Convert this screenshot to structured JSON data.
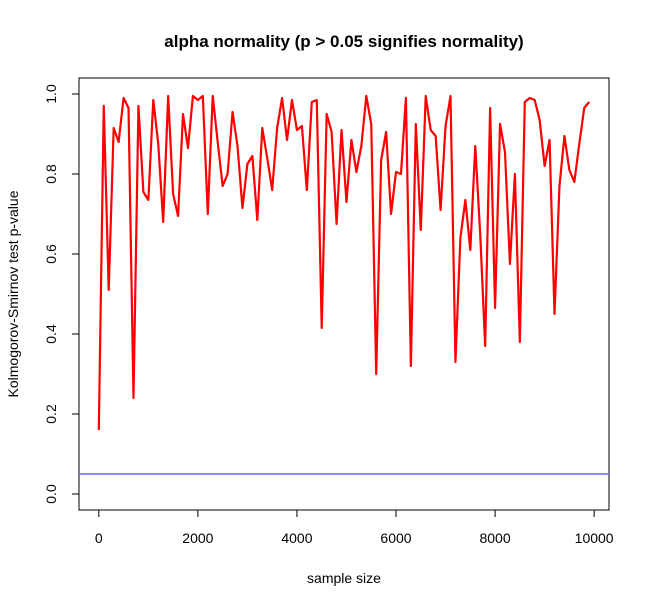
{
  "chart_data": {
    "type": "line",
    "title": "alpha normality (p > 0.05 signifies normality)",
    "xlabel": "sample size",
    "ylabel": "Kolmogorov-Smirnov test p-value",
    "xlim": [
      -400,
      10300
    ],
    "ylim": [
      -0.04,
      1.04
    ],
    "x_ticks": [
      0,
      2000,
      4000,
      6000,
      8000,
      10000
    ],
    "y_ticks": [
      0.0,
      0.2,
      0.4,
      0.6,
      0.8,
      1.0
    ],
    "x_tick_labels": [
      "0",
      "2000",
      "4000",
      "6000",
      "8000",
      "10000"
    ],
    "y_tick_labels": [
      "0.0",
      "0.2",
      "0.4",
      "0.6",
      "0.8",
      "1.0"
    ],
    "grid": false,
    "series": [
      {
        "color": "#ff0000",
        "x": [
          0,
          100,
          200,
          300,
          400,
          500,
          600,
          700,
          800,
          900,
          1000,
          1100,
          1200,
          1300,
          1400,
          1500,
          1600,
          1700,
          1800,
          1900,
          2000,
          2100,
          2200,
          2300,
          2400,
          2500,
          2600,
          2700,
          2800,
          2900,
          3000,
          3100,
          3200,
          3300,
          3400,
          3500,
          3600,
          3700,
          3800,
          3900,
          4000,
          4100,
          4200,
          4300,
          4400,
          4500,
          4600,
          4700,
          4800,
          4900,
          5000,
          5100,
          5200,
          5300,
          5400,
          5500,
          5600,
          5700,
          5800,
          5900,
          6000,
          6100,
          6200,
          6300,
          6400,
          6500,
          6600,
          6700,
          6800,
          6900,
          7000,
          7100,
          7200,
          7300,
          7400,
          7500,
          7600,
          7700,
          7800,
          7900,
          8000,
          8100,
          8200,
          8300,
          8400,
          8500,
          8600,
          8700,
          8800,
          8900,
          9000,
          9100,
          9200,
          9300,
          9400,
          9500,
          9600,
          9700,
          9800,
          9900
        ],
        "values": [
          0.16,
          0.97,
          0.51,
          0.915,
          0.88,
          0.99,
          0.965,
          0.24,
          0.97,
          0.755,
          0.735,
          0.985,
          0.875,
          0.68,
          0.995,
          0.75,
          0.695,
          0.95,
          0.865,
          0.995,
          0.985,
          0.995,
          0.7,
          0.995,
          0.88,
          0.77,
          0.8,
          0.955,
          0.87,
          0.715,
          0.825,
          0.845,
          0.685,
          0.915,
          0.84,
          0.76,
          0.915,
          0.99,
          0.885,
          0.985,
          0.91,
          0.92,
          0.76,
          0.98,
          0.985,
          0.415,
          0.95,
          0.905,
          0.675,
          0.91,
          0.73,
          0.885,
          0.805,
          0.87,
          0.995,
          0.925,
          0.3,
          0.835,
          0.905,
          0.7,
          0.805,
          0.8,
          0.99,
          0.32,
          0.925,
          0.66,
          0.995,
          0.91,
          0.895,
          0.71,
          0.92,
          0.995,
          0.33,
          0.64,
          0.735,
          0.61,
          0.87,
          0.65,
          0.37,
          0.965,
          0.465,
          0.925,
          0.855,
          0.575,
          0.8,
          0.38,
          0.98,
          0.99,
          0.985,
          0.935,
          0.82,
          0.885,
          0.45,
          0.77,
          0.895,
          0.81,
          0.78,
          0.875,
          0.965,
          0.98
        ]
      },
      {
        "color": "#6666ff",
        "type": "hline",
        "value": 0.05
      }
    ]
  }
}
